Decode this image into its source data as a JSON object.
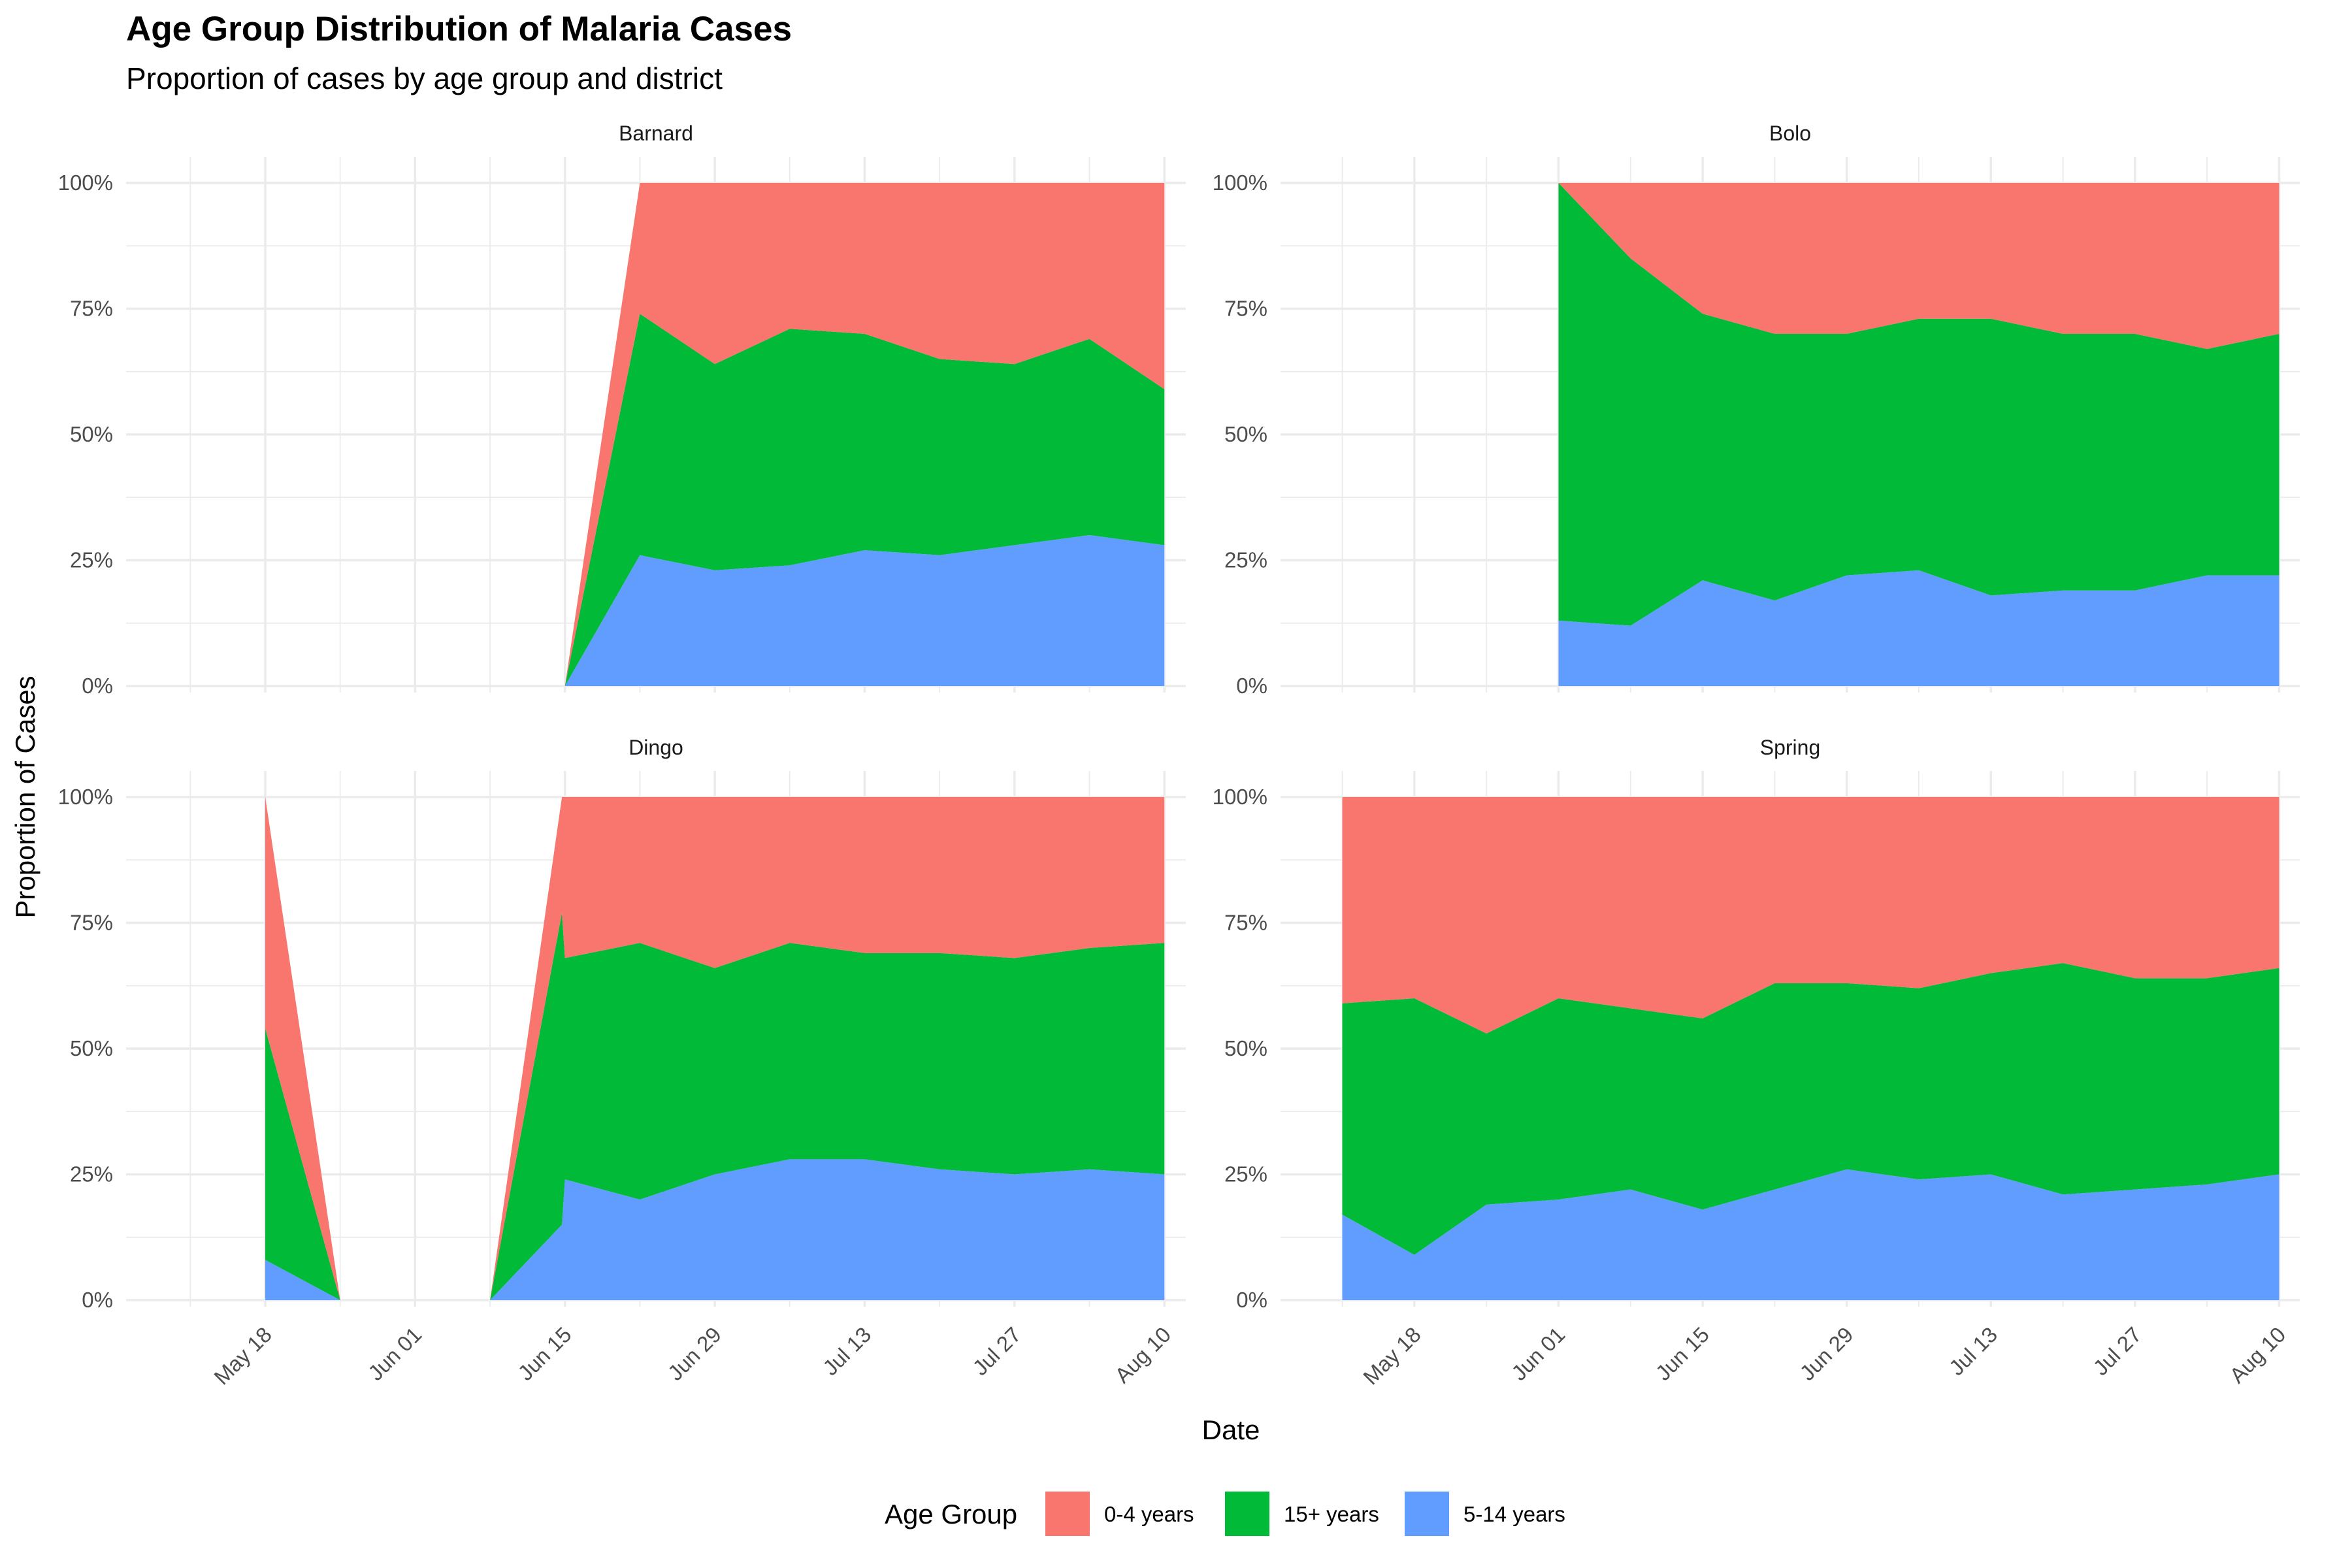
{
  "chart_data": {
    "type": "area",
    "stacked": "proportion",
    "title": "Age Group Distribution of Malaria Cases",
    "subtitle": "Proportion of cases by age group and district",
    "xlabel": "Date",
    "ylabel": "Proportion of Cases",
    "x_ticks": [
      "May 18",
      "Jun 01",
      "Jun 15",
      "Jun 29",
      "Jul 13",
      "Jul 27",
      "Aug 10"
    ],
    "y_ticks": [
      "0%",
      "25%",
      "50%",
      "75%",
      "100%"
    ],
    "ylim": [
      0,
      1
    ],
    "xlim": [
      "2024-05-05",
      "2024-08-12"
    ],
    "grid": true,
    "legend": {
      "title": "Age Group",
      "position": "bottom",
      "entries": [
        {
          "name": "0-4 years",
          "color": "#F8766D"
        },
        {
          "name": "15+ years",
          "color": "#00BA38"
        },
        {
          "name": "5-14 years",
          "color": "#619CFF"
        }
      ]
    },
    "panels": [
      {
        "name": "Barnard",
        "dates": [
          "2024-06-15",
          "2024-06-22",
          "2024-06-29",
          "2024-07-06",
          "2024-07-13",
          "2024-07-20",
          "2024-07-27",
          "2024-08-03",
          "2024-08-10"
        ],
        "series": [
          {
            "name": "5-14 years",
            "values": [
              0.0,
              0.26,
              0.23,
              0.24,
              0.27,
              0.26,
              0.28,
              0.3,
              0.28
            ]
          },
          {
            "name": "15+ years",
            "values": [
              0.0,
              0.48,
              0.41,
              0.47,
              0.43,
              0.39,
              0.36,
              0.39,
              0.31
            ]
          },
          {
            "name": "0-4 years",
            "values": [
              0.0,
              0.26,
              0.36,
              0.29,
              0.3,
              0.35,
              0.36,
              0.31,
              0.41
            ]
          }
        ]
      },
      {
        "name": "Bolo",
        "dates": [
          "2024-06-01",
          "2024-06-08",
          "2024-06-15",
          "2024-06-22",
          "2024-06-29",
          "2024-07-06",
          "2024-07-13",
          "2024-07-20",
          "2024-07-27",
          "2024-08-03",
          "2024-08-10"
        ],
        "series": [
          {
            "name": "5-14 years",
            "values": [
              0.13,
              0.12,
              0.21,
              0.17,
              0.22,
              0.23,
              0.18,
              0.19,
              0.19,
              0.22,
              0.22
            ]
          },
          {
            "name": "15+ years",
            "values": [
              0.87,
              0.73,
              0.53,
              0.53,
              0.48,
              0.5,
              0.55,
              0.51,
              0.51,
              0.45,
              0.48
            ]
          },
          {
            "name": "0-4 years",
            "values": [
              0.0,
              0.15,
              0.26,
              0.3,
              0.3,
              0.27,
              0.27,
              0.3,
              0.3,
              0.33,
              0.3
            ]
          }
        ]
      },
      {
        "name": "Dingo",
        "dates": [
          "2024-05-18",
          "2024-05-25",
          "2024-06-01",
          "2024-06-08",
          "2024-06-15",
          "2024-06-22",
          "2024-06-29",
          "2024-07-06",
          "2024-07-13",
          "2024-07-20",
          "2024-07-27",
          "2024-08-03",
          "2024-08-10"
        ],
        "series": [
          {
            "name": "5-14 years",
            "values": [
              0.08,
              0.0,
              null,
              0.0,
              0.24,
              0.2,
              0.25,
              0.28,
              0.28,
              0.26,
              0.25,
              0.26,
              0.25
            ]
          },
          {
            "name": "15+ years",
            "values": [
              0.46,
              0.0,
              null,
              0.0,
              0.44,
              0.51,
              0.41,
              0.43,
              0.41,
              0.43,
              0.43,
              0.44,
              0.46
            ]
          },
          {
            "name": "0-4 years",
            "values": [
              0.46,
              0.0,
              null,
              0.0,
              0.32,
              0.29,
              0.34,
              0.29,
              0.31,
              0.31,
              0.32,
              0.3,
              0.29
            ]
          }
        ],
        "extra_points": [
          {
            "date": "2024-06-08",
            "values": [
              0.15,
              0.62,
              0.23
            ]
          }
        ]
      },
      {
        "name": "Spring",
        "dates": [
          "2024-05-11",
          "2024-05-18",
          "2024-05-25",
          "2024-06-01",
          "2024-06-08",
          "2024-06-15",
          "2024-06-22",
          "2024-06-29",
          "2024-07-06",
          "2024-07-13",
          "2024-07-20",
          "2024-07-27",
          "2024-08-03",
          "2024-08-10"
        ],
        "series": [
          {
            "name": "5-14 years",
            "values": [
              0.17,
              0.09,
              0.19,
              0.2,
              0.22,
              0.18,
              0.22,
              0.26,
              0.24,
              0.25,
              0.21,
              0.22,
              0.23,
              0.25
            ]
          },
          {
            "name": "15+ years",
            "values": [
              0.42,
              0.51,
              0.34,
              0.4,
              0.36,
              0.38,
              0.41,
              0.37,
              0.38,
              0.4,
              0.46,
              0.42,
              0.41,
              0.41
            ]
          },
          {
            "name": "0-4 years",
            "values": [
              0.41,
              0.4,
              0.47,
              0.4,
              0.42,
              0.44,
              0.37,
              0.37,
              0.38,
              0.35,
              0.33,
              0.36,
              0.36,
              0.34
            ]
          }
        ]
      }
    ]
  }
}
